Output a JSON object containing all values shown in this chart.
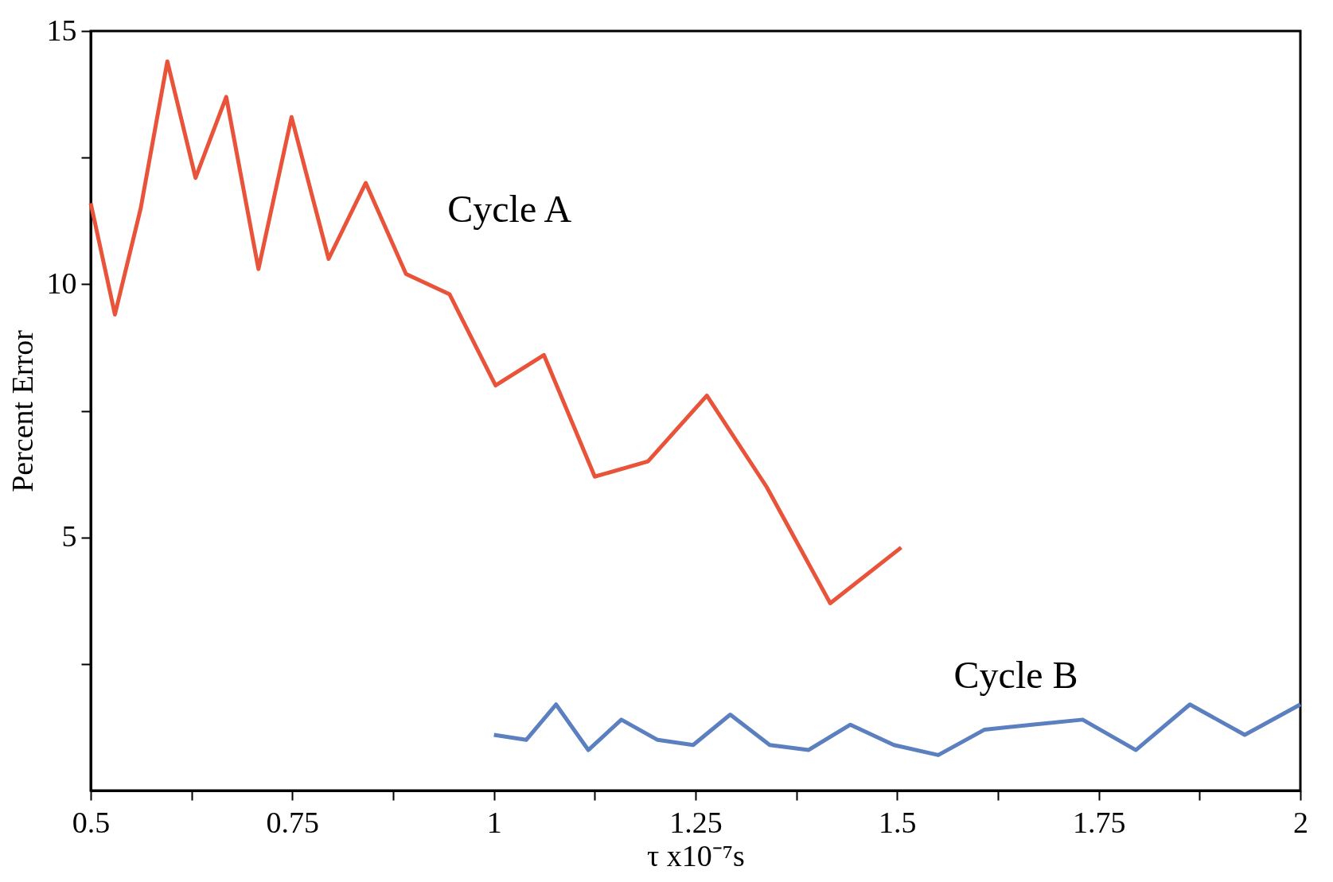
{
  "chart_data": {
    "type": "line",
    "xlabel": "τ x10⁻⁷s",
    "ylabel": "Percent Error",
    "xlim": [
      0.5,
      2
    ],
    "ylim": [
      0,
      15
    ],
    "xticks": [
      0.5,
      {
        "value": 0.625,
        "label": null
      },
      0.75,
      {
        "value": 0.875,
        "label": null
      },
      1,
      {
        "value": 1.125,
        "label": null
      },
      1.25,
      {
        "value": 1.375,
        "label": null
      },
      1.5,
      {
        "value": 1.625,
        "label": null
      },
      1.75,
      {
        "value": 1.875,
        "label": null
      },
      2
    ],
    "yticks": [
      {
        "value": 2.5,
        "label": null
      },
      5,
      {
        "value": 7.5,
        "label": null
      },
      10,
      {
        "value": 12.5,
        "label": null
      },
      15
    ],
    "grid": false,
    "legend": false,
    "marker": "none",
    "line_style": "solid",
    "series": [
      {
        "name": "Cycle A",
        "color": "#e8533a",
        "x": [
          0.5,
          0.53,
          0.562,
          0.595,
          0.63,
          0.668,
          0.708,
          0.749,
          0.795,
          0.841,
          0.891,
          0.945,
          1.002,
          1.062,
          1.125,
          1.191,
          1.264,
          1.338,
          1.417,
          1.505
        ],
        "values": [
          11.6,
          9.4,
          11.5,
          14.4,
          12.1,
          13.7,
          10.3,
          13.3,
          10.5,
          12.0,
          10.2,
          9.8,
          8.0,
          8.6,
          6.2,
          6.5,
          7.8,
          6.0,
          3.7,
          4.8
        ]
      },
      {
        "name": "Cycle B",
        "color": "#5b7fbf",
        "x": [
          1.0,
          1.04,
          1.077,
          1.117,
          1.158,
          1.203,
          1.247,
          1.293,
          1.342,
          1.39,
          1.442,
          1.496,
          1.551,
          1.608,
          1.667,
          1.73,
          1.796,
          1.863,
          1.931,
          2.0
        ],
        "values": [
          1.1,
          1.0,
          1.7,
          0.8,
          1.4,
          1.0,
          0.9,
          1.5,
          0.9,
          0.8,
          1.3,
          0.9,
          0.7,
          1.2,
          1.3,
          1.4,
          0.8,
          1.7,
          1.1,
          1.7
        ]
      }
    ]
  }
}
